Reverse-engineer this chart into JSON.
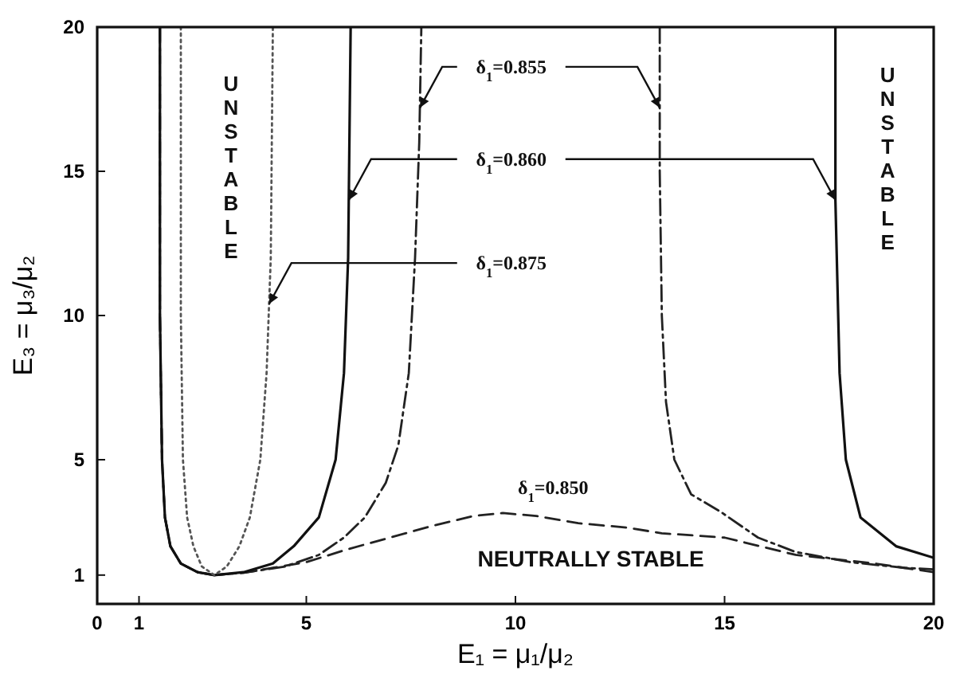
{
  "chart_data": {
    "type": "line",
    "xlabel": "E₁ = μ₁/μ₂",
    "ylabel": "E₃ = μ₃/μ₂",
    "xlim": [
      0,
      20
    ],
    "ylim": [
      0,
      20
    ],
    "xticks": [
      0,
      1,
      5,
      10,
      15,
      20
    ],
    "yticks": [
      1,
      5,
      10,
      15,
      20
    ],
    "series": [
      {
        "name": "δ$_{1}$=0.850",
        "color": "#222222",
        "line_style": "dashed",
        "x": [
          1.5,
          1.5,
          1.55,
          1.62,
          1.75,
          2.0,
          2.4,
          2.8,
          3.5,
          4.2,
          5,
          6,
          7,
          8,
          9,
          9.7,
          10.5,
          11.5,
          12.65,
          13.5,
          15,
          16.7,
          18.6,
          19.3,
          20
        ],
        "values": [
          20,
          10,
          5,
          3,
          2,
          1.4,
          1.1,
          1.0,
          1.08,
          1.25,
          1.45,
          1.9,
          2.3,
          2.7,
          3.05,
          3.15,
          3.05,
          2.8,
          2.65,
          2.45,
          2.3,
          1.7,
          1.4,
          1.25,
          1.1
        ]
      },
      {
        "name": "δ$_{1}$=0.855",
        "color": "#222222",
        "line_style": "dashdot",
        "x": [
          1.5,
          1.5,
          1.55,
          1.62,
          1.75,
          2.0,
          2.4,
          2.8,
          3.5,
          4.5,
          5.3,
          5.9,
          6.4,
          6.9,
          7.2,
          7.45,
          7.6,
          7.7,
          7.75,
          10,
          13.45,
          13.45,
          13.5,
          13.6,
          13.8,
          14.2,
          14.9,
          15.8,
          16.7,
          18,
          19.3,
          20
        ],
        "values": [
          20,
          10,
          5,
          3,
          2,
          1.4,
          1.1,
          1.0,
          1.08,
          1.3,
          1.7,
          2.3,
          3,
          4.2,
          5.5,
          8,
          12,
          16,
          20,
          null,
          20,
          15,
          10,
          7,
          5,
          3.8,
          3.2,
          2.3,
          1.8,
          1.45,
          1.25,
          1.2
        ]
      },
      {
        "name": "δ$_{1}$=0.860",
        "color": "#111111",
        "line_style": "solid",
        "x": [
          1.5,
          1.5,
          1.55,
          1.62,
          1.75,
          2.0,
          2.4,
          2.8,
          3.5,
          4.2,
          4.7,
          5.3,
          5.7,
          5.9,
          6.0,
          6.06,
          10,
          17.65,
          17.65,
          17.75,
          17.9,
          18.25,
          19.1,
          20
        ],
        "values": [
          20,
          10,
          5,
          3,
          2,
          1.4,
          1.1,
          1.0,
          1.1,
          1.4,
          2,
          3,
          5,
          8,
          12,
          20,
          null,
          20,
          14,
          8,
          5,
          3,
          2,
          1.6
        ]
      },
      {
        "name": "δ$_{1}$=0.875",
        "color": "#555555",
        "line_style": "dotted",
        "x": [
          2.0,
          2.0,
          2.05,
          2.15,
          2.3,
          2.5,
          2.8,
          3.1,
          3.4,
          3.65,
          3.9,
          4.05,
          4.15,
          4.2
        ],
        "values": [
          20,
          10,
          5,
          3,
          2,
          1.3,
          1.0,
          1.3,
          2,
          3,
          5,
          8,
          12,
          20
        ]
      }
    ],
    "annotations": [
      "UNSTABLE",
      "UNSTABLE",
      "NEUTRALLY STABLE"
    ]
  }
}
